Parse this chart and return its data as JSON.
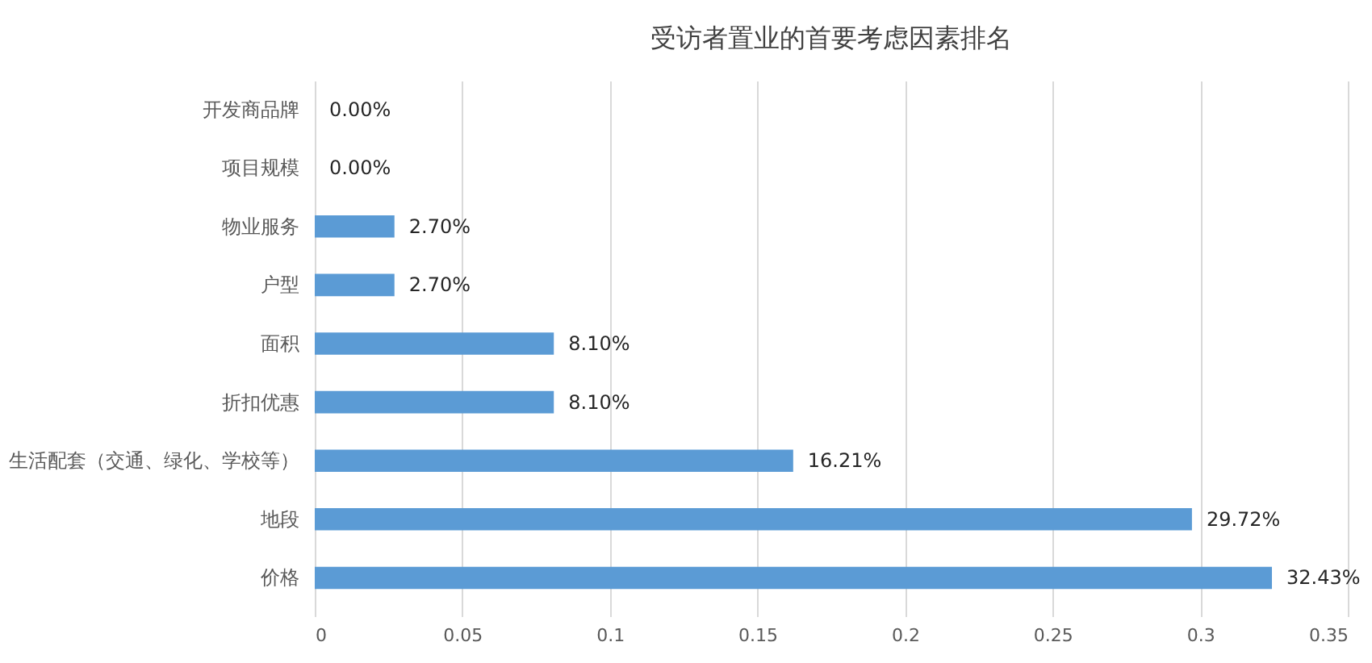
{
  "chart_data": {
    "type": "bar",
    "orientation": "horizontal",
    "title": "受访者置业的首要考虑因素排名",
    "categories": [
      "开发商品牌",
      "项目规模",
      "物业服务",
      "户型",
      "面积",
      "折扣优惠",
      "生活配套（交通、绿化、学校等）",
      "地段",
      "价格"
    ],
    "values": [
      0,
      0,
      0.027,
      0.027,
      0.081,
      0.081,
      0.1621,
      0.2972,
      0.3243
    ],
    "value_labels": [
      "0.00%",
      "0.00%",
      "2.70%",
      "2.70%",
      "8.10%",
      "8.10%",
      "16.21%",
      "29.72%",
      "32.43%"
    ],
    "color": "#5b9bd5",
    "xlim": [
      0,
      0.35
    ],
    "xticks": [
      0,
      0.05,
      0.1,
      0.15,
      0.2,
      0.25,
      0.3,
      0.35
    ],
    "grid": "x"
  }
}
